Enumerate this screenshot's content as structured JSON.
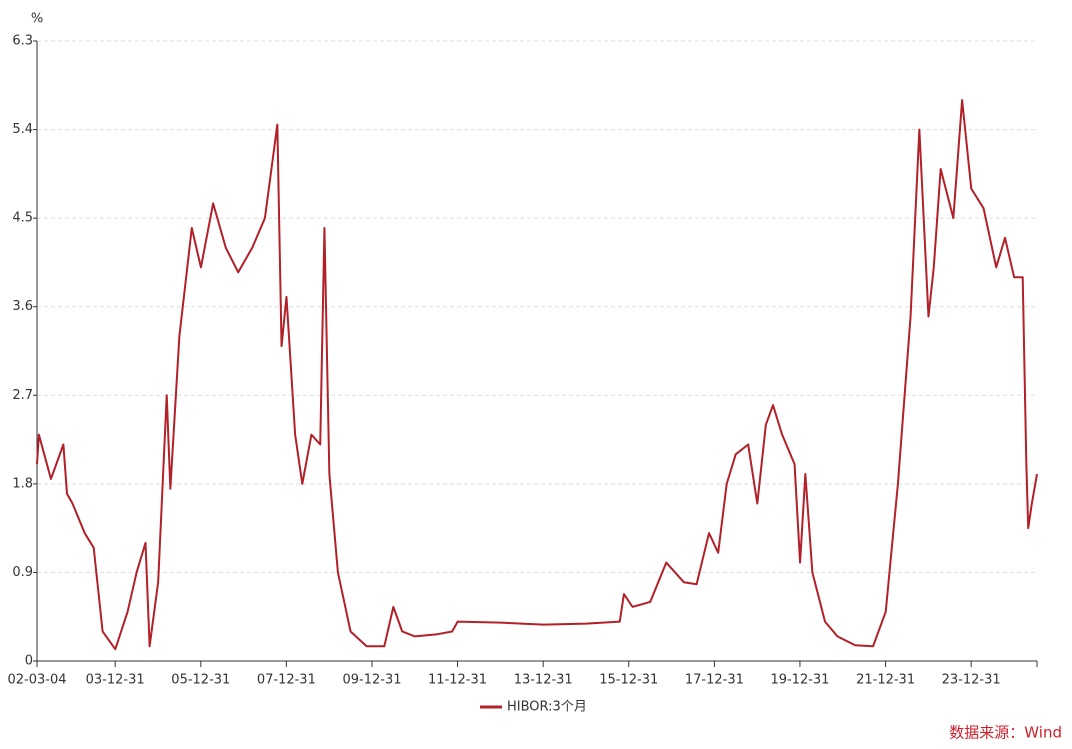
{
  "chart_data": {
    "type": "line",
    "y_label": "%",
    "source": "数据来源：Wind",
    "x": [
      "02-03-04",
      "02-03-20",
      "02-07-01",
      "02-10-15",
      "02-11-15",
      "03-01-01",
      "03-04-15",
      "03-07-01",
      "03-09-15",
      "04-01-01",
      "04-04-15",
      "04-07-01",
      "04-09-15",
      "04-10-20",
      "05-01-01",
      "05-03-15",
      "05-04-15",
      "05-07-01",
      "05-10-15",
      "06-01-01",
      "06-04-15",
      "06-08-01",
      "06-11-15",
      "07-03-15",
      "07-07-01",
      "07-10-15",
      "07-11-20",
      "08-01-01",
      "08-03-15",
      "08-05-15",
      "08-08-01",
      "08-10-15",
      "08-11-20",
      "09-01-01",
      "09-03-15",
      "09-07-01",
      "09-11-15",
      "10-04-15",
      "10-07-01",
      "10-09-15",
      "11-01-01",
      "11-07-01",
      "11-11-15",
      "12-01-01",
      "13-01-01",
      "14-01-01",
      "15-01-01",
      "15-10-15",
      "15-11-20",
      "16-02-01",
      "16-07-01",
      "16-11-15",
      "17-04-15",
      "17-08-01",
      "17-11-15",
      "18-02-01",
      "18-04-15",
      "18-07-01",
      "18-10-15",
      "19-01-01",
      "19-03-15",
      "19-05-15",
      "19-08-01",
      "19-11-15",
      "20-01-01",
      "20-02-15",
      "20-04-15",
      "20-08-01",
      "20-11-15",
      "21-04-15",
      "21-09-15",
      "22-01-01",
      "22-04-15",
      "22-08-01",
      "22-10-15",
      "23-01-01",
      "23-02-15",
      "23-04-15",
      "23-08-01",
      "23-10-15",
      "24-01-01",
      "24-04-15",
      "24-08-01",
      "24-10-15",
      "25-01-01",
      "25-03-15",
      "25-04-15",
      "25-05-01",
      "25-06-01",
      "25-07-15"
    ],
    "series": [
      {
        "name": "HIBOR:3个月",
        "color": "#b22028",
        "values": [
          2.0,
          2.3,
          1.85,
          2.2,
          1.7,
          1.6,
          1.3,
          1.15,
          0.3,
          0.12,
          0.5,
          0.9,
          1.2,
          0.15,
          0.8,
          2.7,
          1.75,
          3.3,
          4.4,
          4.0,
          4.65,
          4.2,
          3.95,
          4.2,
          4.5,
          5.45,
          3.2,
          3.7,
          2.3,
          1.8,
          2.3,
          2.2,
          4.4,
          1.9,
          0.9,
          0.3,
          0.15,
          0.15,
          0.55,
          0.3,
          0.25,
          0.27,
          0.3,
          0.4,
          0.39,
          0.37,
          0.38,
          0.4,
          0.68,
          0.55,
          0.6,
          1.0,
          0.8,
          0.78,
          1.3,
          1.1,
          1.8,
          2.1,
          2.2,
          1.6,
          2.4,
          2.6,
          2.3,
          2.0,
          1.0,
          1.9,
          0.9,
          0.4,
          0.25,
          0.16,
          0.15,
          0.5,
          1.8,
          3.5,
          5.4,
          3.5,
          4.0,
          5.0,
          4.5,
          5.7,
          4.8,
          4.6,
          4.0,
          4.3,
          3.9,
          3.9,
          2.0,
          1.35,
          1.6,
          1.9
        ]
      }
    ],
    "xlim": [
      "02-03-04",
      "25-07-15"
    ],
    "xticks": [
      "02-03-04",
      "03-12-31",
      "05-12-31",
      "07-12-31",
      "09-12-31",
      "11-12-31",
      "13-12-31",
      "15-12-31",
      "17-12-31",
      "19-12-31",
      "21-12-31",
      "23-12-31"
    ],
    "ylim": [
      0,
      6.3
    ],
    "yticks": [
      0,
      0.9,
      1.8,
      2.7,
      3.6,
      4.5,
      5.4,
      6.3
    ],
    "grid": true,
    "legend": "bottom"
  }
}
